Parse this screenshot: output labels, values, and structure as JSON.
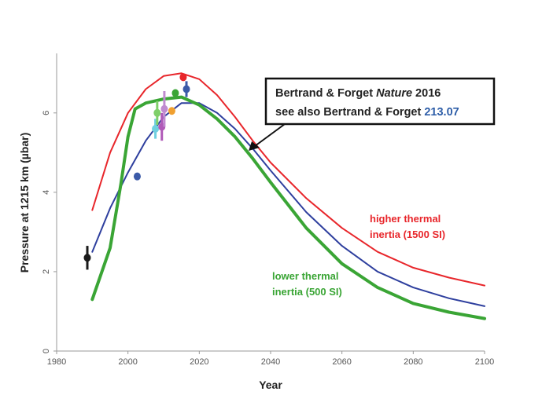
{
  "chart_data": {
    "type": "line",
    "xlabel": "Year",
    "ylabel": "Pressure at 1215 km (µbar)",
    "xlim": [
      1980,
      2100
    ],
    "ylim": [
      0,
      7.5
    ],
    "xticks": [
      1980,
      2000,
      2020,
      2040,
      2060,
      2080,
      2100
    ],
    "yticks": [
      0,
      2,
      4,
      6
    ],
    "grid": false,
    "series": [
      {
        "name": "higher thermal inertia (1500 SI)",
        "color": "#e8262b",
        "points": [
          [
            1990,
            3.55
          ],
          [
            1995,
            5.0
          ],
          [
            2000,
            6.0
          ],
          [
            2005,
            6.6
          ],
          [
            2010,
            6.93
          ],
          [
            2015,
            7.0
          ],
          [
            2020,
            6.85
          ],
          [
            2025,
            6.45
          ],
          [
            2030,
            5.9
          ],
          [
            2035,
            5.3
          ],
          [
            2040,
            4.75
          ],
          [
            2050,
            3.85
          ],
          [
            2060,
            3.1
          ],
          [
            2070,
            2.5
          ],
          [
            2080,
            2.1
          ],
          [
            2090,
            1.85
          ],
          [
            2100,
            1.65
          ]
        ]
      },
      {
        "color": "#2e3f9e",
        "points": [
          [
            1990,
            2.5
          ],
          [
            1995,
            3.6
          ],
          [
            2000,
            4.5
          ],
          [
            2005,
            5.3
          ],
          [
            2010,
            5.9
          ],
          [
            2015,
            6.25
          ],
          [
            2020,
            6.25
          ],
          [
            2025,
            6.0
          ],
          [
            2030,
            5.6
          ],
          [
            2035,
            5.1
          ],
          [
            2040,
            4.55
          ],
          [
            2050,
            3.5
          ],
          [
            2060,
            2.65
          ],
          [
            2070,
            2.0
          ],
          [
            2080,
            1.6
          ],
          [
            2090,
            1.33
          ],
          [
            2100,
            1.13
          ]
        ]
      },
      {
        "name": "lower thermal inertia (500 SI)",
        "color": "#3aa535",
        "points": [
          [
            1990,
            1.3
          ],
          [
            1995,
            2.6
          ],
          [
            1998,
            4.2
          ],
          [
            2000,
            5.4
          ],
          [
            2002,
            6.1
          ],
          [
            2005,
            6.25
          ],
          [
            2010,
            6.35
          ],
          [
            2015,
            6.4
          ],
          [
            2020,
            6.2
          ],
          [
            2025,
            5.85
          ],
          [
            2030,
            5.4
          ],
          [
            2035,
            4.85
          ],
          [
            2040,
            4.25
          ],
          [
            2050,
            3.1
          ],
          [
            2060,
            2.2
          ],
          [
            2070,
            1.6
          ],
          [
            2080,
            1.2
          ],
          [
            2090,
            0.98
          ],
          [
            2100,
            0.82
          ]
        ]
      }
    ],
    "observations": [
      {
        "year": 1988.6,
        "value": 2.35,
        "err": 0.3,
        "color": "#1a1a1a"
      },
      {
        "year": 2002.6,
        "value": 4.4,
        "err": 0,
        "color": "#3b5aa8"
      },
      {
        "year": 2007.7,
        "value": 5.6,
        "err": 0.25,
        "color": "#6fd0e0"
      },
      {
        "year": 2008.2,
        "value": 6.0,
        "err": 0.3,
        "color": "#7fcf6a"
      },
      {
        "year": 2009.5,
        "value": 5.65,
        "err": 0.35,
        "color": "#b05ab8"
      },
      {
        "year": 2010.2,
        "value": 6.1,
        "err": 0.45,
        "color": "#c08ad0"
      },
      {
        "year": 2012.3,
        "value": 6.05,
        "err": 0,
        "color": "#f0a030"
      },
      {
        "year": 2013.3,
        "value": 6.5,
        "err": 0,
        "color": "#3aa535"
      },
      {
        "year": 2015.5,
        "value": 6.9,
        "err": 0,
        "color": "#e8262b"
      },
      {
        "year": 2016.4,
        "value": 6.6,
        "err": 0.2,
        "color": "#3b5aa8"
      }
    ],
    "annotations": {
      "higher_label_line1": "higher thermal",
      "higher_label_line2": "inertia (1500 SI)",
      "lower_label_line1": "lower thermal",
      "lower_label_line2": "inertia (500 SI)",
      "callout_line1_prefix": "Bertrand & Forget ",
      "callout_line1_italic": "Nature",
      "callout_line1_suffix": " 2016",
      "callout_line2_prefix": "see also Bertrand & Forget ",
      "callout_line2_link": "213.07"
    }
  }
}
